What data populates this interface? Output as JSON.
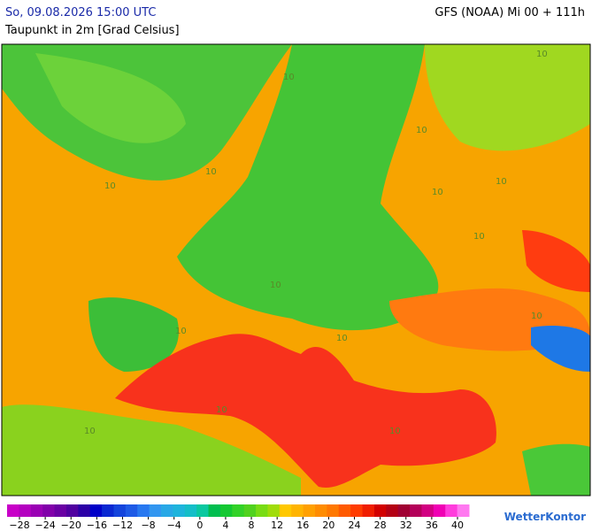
{
  "header": {
    "valid_time": "So, 09.08.2026 15:00 UTC",
    "model_run": "GFS (NOAA) Mi 00 + 111h",
    "parameter": "Taupunkt in 2m [Grad Celsius]"
  },
  "map": {
    "contour_labels": [
      "10",
      "10",
      "10",
      "10",
      "10",
      "10",
      "10",
      "10",
      "10",
      "10",
      "10",
      "10",
      "10",
      "10",
      "10"
    ]
  },
  "colorbar": {
    "ticks": [
      {
        "value": -28,
        "label": "−28"
      },
      {
        "value": -24,
        "label": "−24"
      },
      {
        "value": -20,
        "label": "−20"
      },
      {
        "value": -16,
        "label": "−16"
      },
      {
        "value": -12,
        "label": "−12"
      },
      {
        "value": -8,
        "label": "−8"
      },
      {
        "value": -4,
        "label": "−4"
      },
      0,
      4,
      8,
      12,
      16,
      20,
      24,
      28,
      32,
      36,
      40
    ],
    "colors": [
      "#c800c8",
      "#b400c0",
      "#9a00b4",
      "#8200aa",
      "#6a00a4",
      "#5000a0",
      "#2c00a6",
      "#0000c8",
      "#0a28d2",
      "#1444dc",
      "#1e5ae6",
      "#2878f0",
      "#3296f0",
      "#28a8e6",
      "#1eb4dc",
      "#14bec8",
      "#0ac8a0",
      "#00be50",
      "#14c832",
      "#32d228",
      "#50d21e",
      "#78dc14",
      "#a0dc0a",
      "#ffc800",
      "#ffb400",
      "#ffa000",
      "#ff8c00",
      "#ff7800",
      "#ff5a00",
      "#ff3c00",
      "#f01e00",
      "#d20000",
      "#b40014",
      "#a00032",
      "#b4005a",
      "#d20082",
      "#f000b4",
      "#ff3cdc",
      "#ff78f0"
    ]
  },
  "brand": "WetterKontor"
}
